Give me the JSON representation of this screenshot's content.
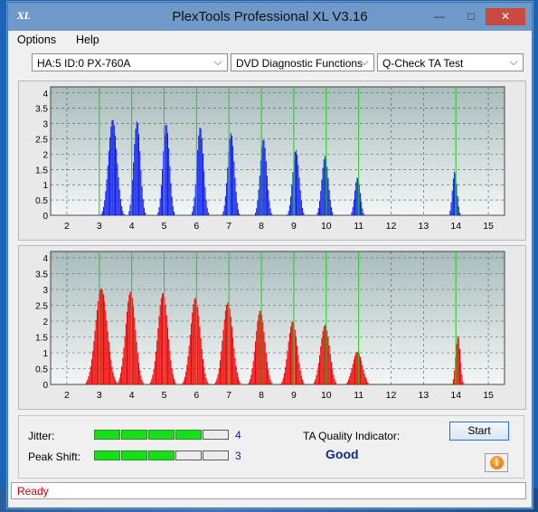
{
  "window": {
    "title": "PlexTools Professional XL V3.16",
    "icon_text": "XL",
    "minimize": "—",
    "maximize": "□",
    "close": "✕"
  },
  "menu": [
    "Options",
    "Help"
  ],
  "toolbar": {
    "drive": "HA:5 ID:0  PX-760A",
    "function": "DVD Diagnostic Functions",
    "test": "Q-Check TA Test"
  },
  "charts": {
    "y_ticks": [
      "4",
      "3.5",
      "3",
      "2.5",
      "2",
      "1.5",
      "1",
      "0.5",
      "0"
    ],
    "x_ticks": [
      "2",
      "3",
      "4",
      "5",
      "6",
      "7",
      "8",
      "9",
      "10",
      "11",
      "12",
      "13",
      "14",
      "15"
    ],
    "marker_positions": [
      3,
      4,
      5,
      6,
      7,
      8,
      9,
      10,
      11,
      14
    ],
    "top_color": "#0a1bf0",
    "bottom_color": "#ee0000",
    "marker_color": "#22cc22"
  },
  "chart_data": [
    {
      "type": "bar",
      "name": "top",
      "xlim": [
        1.5,
        15.5
      ],
      "ylim": [
        0,
        4.2
      ],
      "peaks": [
        {
          "center": 3.4,
          "height": 3.2,
          "width": 0.26
        },
        {
          "center": 4.15,
          "height": 3.15,
          "width": 0.2
        },
        {
          "center": 5.05,
          "height": 3.05,
          "width": 0.2
        },
        {
          "center": 6.1,
          "height": 2.95,
          "width": 0.2
        },
        {
          "center": 7.05,
          "height": 2.75,
          "width": 0.2
        },
        {
          "center": 8.05,
          "height": 2.55,
          "width": 0.2
        },
        {
          "center": 9.05,
          "height": 2.2,
          "width": 0.2
        },
        {
          "center": 9.95,
          "height": 2.0,
          "width": 0.2
        },
        {
          "center": 10.95,
          "height": 1.3,
          "width": 0.17
        },
        {
          "center": 13.95,
          "height": 1.5,
          "width": 0.14
        }
      ]
    },
    {
      "type": "bar",
      "name": "bottom",
      "xlim": [
        1.5,
        15.5
      ],
      "ylim": [
        0,
        4.2
      ],
      "peaks": [
        {
          "center": 3.05,
          "height": 3.1,
          "width": 0.36
        },
        {
          "center": 3.95,
          "height": 3.0,
          "width": 0.3
        },
        {
          "center": 4.95,
          "height": 2.95,
          "width": 0.3
        },
        {
          "center": 5.95,
          "height": 2.8,
          "width": 0.3
        },
        {
          "center": 6.95,
          "height": 2.65,
          "width": 0.3
        },
        {
          "center": 7.95,
          "height": 2.4,
          "width": 0.28
        },
        {
          "center": 8.95,
          "height": 2.05,
          "width": 0.28
        },
        {
          "center": 9.95,
          "height": 1.95,
          "width": 0.28
        },
        {
          "center": 10.95,
          "height": 1.1,
          "width": 0.3
        },
        {
          "center": 14.05,
          "height": 1.6,
          "width": 0.14
        }
      ]
    }
  ],
  "metrics": {
    "jitter_label": "Jitter:",
    "jitter_value": "4",
    "jitter_level": 4,
    "peak_label": "Peak Shift:",
    "peak_value": "3",
    "peak_level": 3,
    "segments": 5,
    "ta_label": "TA Quality Indicator:",
    "ta_value": "Good"
  },
  "buttons": {
    "start": "Start",
    "info": "i"
  },
  "status": "Ready"
}
